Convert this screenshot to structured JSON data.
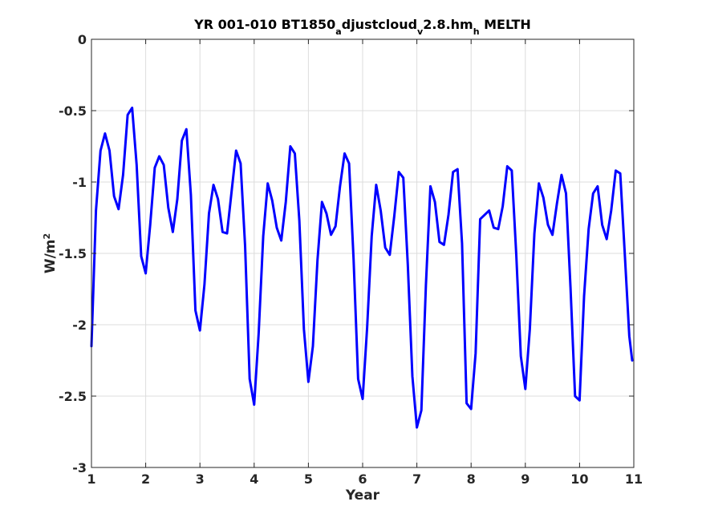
{
  "chart_data": {
    "type": "line",
    "title": {
      "parts": [
        {
          "text": "YR 001-010 BT1850",
          "sub": false
        },
        {
          "text": "a",
          "sub": true
        },
        {
          "text": "djustcloud",
          "sub": false
        },
        {
          "text": "v",
          "sub": true
        },
        {
          "text": "2.8.hm",
          "sub": false
        },
        {
          "text": "h",
          "sub": true
        },
        {
          "text": " MELTH",
          "sub": false
        }
      ]
    },
    "xlabel": "Year",
    "ylabel": {
      "base": "W/m",
      "sup": "2"
    },
    "xlim": [
      1,
      11
    ],
    "ylim": [
      -3,
      0
    ],
    "xticks": [
      "1",
      "2",
      "3",
      "4",
      "5",
      "6",
      "7",
      "8",
      "9",
      "10",
      "11"
    ],
    "yticks": [
      "0",
      "-0.5",
      "-1",
      "-1.5",
      "-2",
      "-2.5",
      "-3"
    ],
    "grid": true,
    "line_color": "#0000ff",
    "series": [
      {
        "x": [
          1.0,
          1.083,
          1.167,
          1.25,
          1.333,
          1.417,
          1.5,
          1.583,
          1.667,
          1.75,
          1.833,
          1.917,
          2.0,
          2.083,
          2.167,
          2.25,
          2.333,
          2.417,
          2.5,
          2.583,
          2.667,
          2.75,
          2.833,
          2.917,
          3.0,
          3.083,
          3.167,
          3.25,
          3.333,
          3.417,
          3.5,
          3.583,
          3.667,
          3.75,
          3.833,
          3.917,
          4.0,
          4.083,
          4.167,
          4.25,
          4.333,
          4.417,
          4.5,
          4.583,
          4.667,
          4.75,
          4.833,
          4.917,
          5.0,
          5.083,
          5.167,
          5.25,
          5.333,
          5.417,
          5.5,
          5.583,
          5.667,
          5.75,
          5.833,
          5.917,
          6.0,
          6.083,
          6.167,
          6.25,
          6.333,
          6.417,
          6.5,
          6.583,
          6.667,
          6.75,
          6.833,
          6.917,
          7.0,
          7.083,
          7.167,
          7.25,
          7.333,
          7.417,
          7.5,
          7.583,
          7.667,
          7.75,
          7.833,
          7.917,
          8.0,
          8.083,
          8.167,
          8.25,
          8.333,
          8.417,
          8.5,
          8.583,
          8.667,
          8.75,
          8.833,
          8.917,
          9.0,
          9.083,
          9.167,
          9.25,
          9.333,
          9.417,
          9.5,
          9.583,
          9.667,
          9.75,
          9.833,
          9.917,
          10.0,
          10.083,
          10.167,
          10.25,
          10.333,
          10.417,
          10.5,
          10.583,
          10.667,
          10.75,
          10.833,
          10.917,
          10.97
        ],
        "y": [
          -2.15,
          -1.2,
          -0.78,
          -0.66,
          -0.78,
          -1.1,
          -1.19,
          -0.95,
          -0.53,
          -0.48,
          -0.88,
          -1.52,
          -1.64,
          -1.3,
          -0.9,
          -0.82,
          -0.88,
          -1.18,
          -1.35,
          -1.12,
          -0.71,
          -0.63,
          -1.09,
          -1.9,
          -2.04,
          -1.72,
          -1.22,
          -1.02,
          -1.12,
          -1.35,
          -1.36,
          -1.07,
          -0.78,
          -0.87,
          -1.45,
          -2.38,
          -2.56,
          -2.06,
          -1.38,
          -1.01,
          -1.13,
          -1.32,
          -1.41,
          -1.14,
          -0.75,
          -0.8,
          -1.27,
          -2.03,
          -2.4,
          -2.15,
          -1.55,
          -1.14,
          -1.22,
          -1.37,
          -1.31,
          -1.03,
          -0.8,
          -0.87,
          -1.54,
          -2.38,
          -2.52,
          -2.02,
          -1.38,
          -1.02,
          -1.2,
          -1.46,
          -1.51,
          -1.24,
          -0.93,
          -0.97,
          -1.58,
          -2.36,
          -2.72,
          -2.6,
          -1.72,
          -1.03,
          -1.14,
          -1.42,
          -1.44,
          -1.23,
          -0.93,
          -0.91,
          -1.43,
          -2.55,
          -2.59,
          -2.2,
          -1.26,
          -1.23,
          -1.2,
          -1.32,
          -1.33,
          -1.17,
          -0.89,
          -0.92,
          -1.51,
          -2.22,
          -2.45,
          -2.03,
          -1.36,
          -1.01,
          -1.11,
          -1.3,
          -1.37,
          -1.15,
          -0.95,
          -1.08,
          -1.74,
          -2.5,
          -2.53,
          -1.8,
          -1.33,
          -1.08,
          -1.03,
          -1.3,
          -1.4,
          -1.2,
          -0.92,
          -0.94,
          -1.5,
          -2.08,
          -2.25
        ]
      }
    ]
  }
}
